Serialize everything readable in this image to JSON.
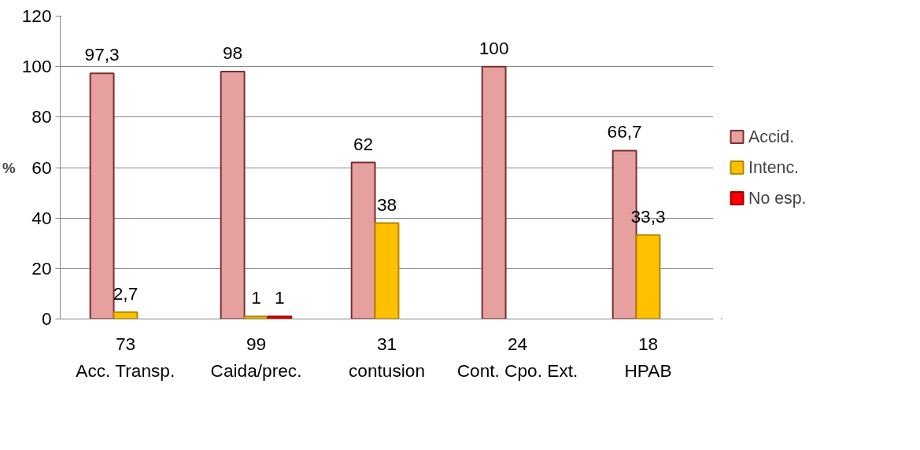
{
  "chart_data": {
    "type": "bar",
    "ylabel": "%",
    "categories": [
      "73\nAcc. Transp.",
      "99\nCaida/prec.",
      "31\ncontusion",
      "24\nCont. Cpo. Ext.",
      "18\nHPAB"
    ],
    "series": [
      {
        "name": "Accid.",
        "color": "#e6a0a0",
        "values": [
          97.3,
          98,
          62,
          100,
          66.7
        ],
        "value_labels": [
          "97,3",
          "98",
          "62",
          "100",
          "66,7"
        ]
      },
      {
        "name": "Intenc.",
        "color": "#ffc000",
        "values": [
          2.7,
          1,
          38,
          null,
          33.3
        ],
        "value_labels": [
          "2,7",
          "1",
          "38",
          null,
          "33,3"
        ]
      },
      {
        "name": "No esp.",
        "color": "#ff0000",
        "values": [
          null,
          1,
          null,
          null,
          null
        ],
        "value_labels": [
          null,
          "1",
          null,
          null,
          null
        ]
      }
    ],
    "ylim": [
      0,
      120
    ],
    "yticks": [
      0,
      20,
      40,
      60,
      80,
      100,
      120
    ],
    "grid": "y",
    "legend": "right"
  }
}
